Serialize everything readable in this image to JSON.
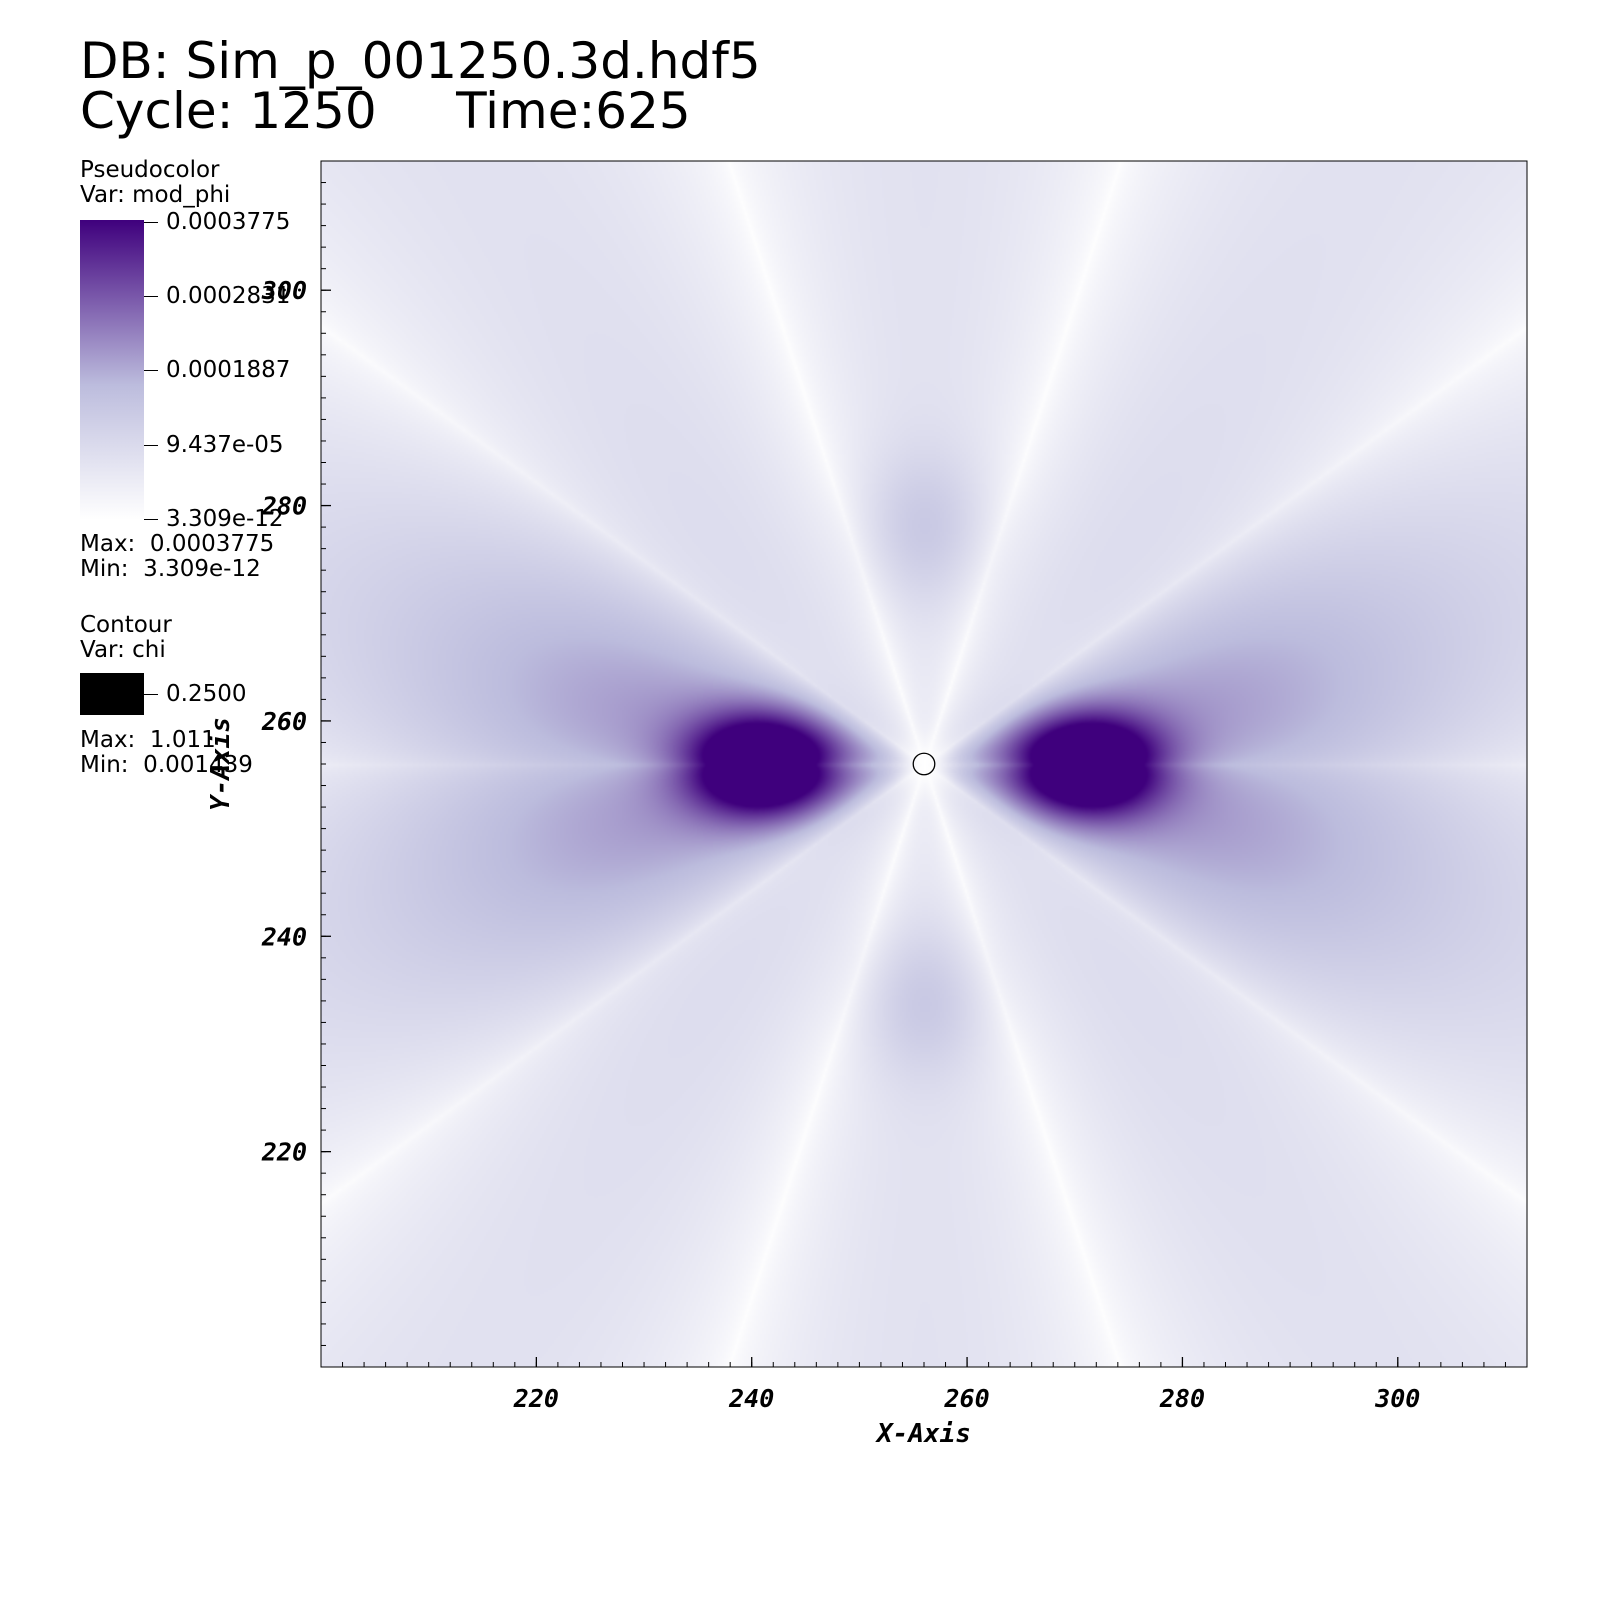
{
  "header": {
    "db": "DB: Sim_p_001250.3d.hdf5",
    "cycle_time": "Cycle: 1250     Time:625"
  },
  "legend": {
    "pseudocolor": {
      "title": "Pseudocolor",
      "var": "Var: mod_phi",
      "ticks": [
        "0.0003775",
        "0.0002831",
        "0.0001887",
        "9.437e-05",
        "3.309e-12"
      ],
      "max": "Max:  0.0003775",
      "min": "Min:  3.309e-12",
      "colors": [
        "#ffffff",
        "#bcbcdd",
        "#3f007d"
      ]
    },
    "contour": {
      "title": "Contour",
      "var": "Var: chi",
      "level": "0.2500",
      "max": "Max:  1.011",
      "min": "Min:  0.001439",
      "color": "#000000"
    }
  },
  "chart_data": {
    "type": "heatmap",
    "variable": "mod_phi",
    "xlabel": "X-Axis",
    "ylabel": "Y-Axis",
    "xlim": [
      200,
      312
    ],
    "ylim": [
      200,
      312
    ],
    "x_ticks": [
      220,
      240,
      260,
      280,
      300
    ],
    "y_ticks": [
      220,
      240,
      260,
      280,
      300
    ],
    "value_range": [
      3.309e-12,
      0.0003775
    ],
    "peaks": [
      {
        "x": 241,
        "y": 256,
        "value": 0.0003775
      },
      {
        "x": 271,
        "y": 256,
        "value": 0.0003775
      }
    ],
    "contour": {
      "variable": "chi",
      "level": 0.25,
      "center": [
        256,
        256
      ],
      "radius": 1
    }
  }
}
